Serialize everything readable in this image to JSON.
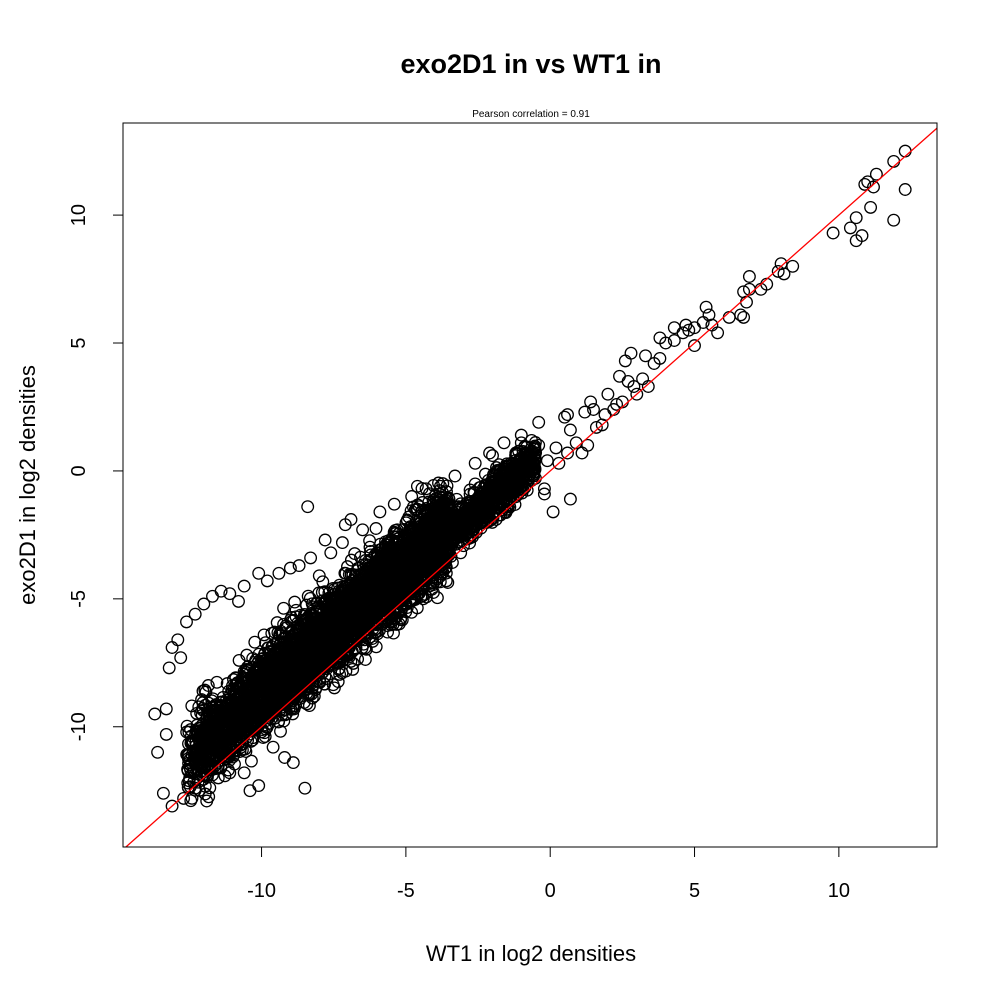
{
  "chart_data": {
    "type": "scatter",
    "title": "exo2D1 in vs WT1 in",
    "subtitle": "Pearson correlation =  0.91",
    "xlabel": "WT1 in log2 densities",
    "ylabel": "exo2D1 in log2 densities",
    "xlim": [
      -14.8,
      13.4
    ],
    "ylim": [
      -14.7,
      13.6
    ],
    "x_ticks": [
      -10,
      -5,
      0,
      5,
      10
    ],
    "y_ticks": [
      -10,
      -5,
      0,
      5,
      10
    ],
    "grid": false,
    "legend": "none",
    "point_style": "open-circle",
    "point_color": "#000000",
    "line_color": "#ff0000",
    "reference_line": {
      "slope": 1,
      "intercept": 0
    },
    "series": [
      {
        "points": [
          [
            12.3,
            12.5
          ],
          [
            12.3,
            11.0
          ],
          [
            11.9,
            12.1
          ],
          [
            11.9,
            9.8
          ],
          [
            11.3,
            11.6
          ],
          [
            11.2,
            11.1
          ],
          [
            11.1,
            10.3
          ],
          [
            11.0,
            11.3
          ],
          [
            10.9,
            11.2
          ],
          [
            10.8,
            9.2
          ],
          [
            10.6,
            9.9
          ],
          [
            10.6,
            9.0
          ],
          [
            10.4,
            9.5
          ],
          [
            9.8,
            9.3
          ],
          [
            8.4,
            8.0
          ],
          [
            8.1,
            7.7
          ],
          [
            8.0,
            8.1
          ],
          [
            7.9,
            7.8
          ],
          [
            7.5,
            7.3
          ],
          [
            7.3,
            7.1
          ],
          [
            6.9,
            7.6
          ],
          [
            6.9,
            7.1
          ],
          [
            6.8,
            6.6
          ],
          [
            6.7,
            7.0
          ],
          [
            6.7,
            6.0
          ],
          [
            6.6,
            6.1
          ],
          [
            6.2,
            6.0
          ],
          [
            5.8,
            5.4
          ],
          [
            5.6,
            5.7
          ],
          [
            5.5,
            6.1
          ],
          [
            5.4,
            6.4
          ],
          [
            5.3,
            5.8
          ],
          [
            5.0,
            5.6
          ],
          [
            5.0,
            4.9
          ],
          [
            4.8,
            5.5
          ],
          [
            4.7,
            5.7
          ],
          [
            4.6,
            5.4
          ],
          [
            4.3,
            5.1
          ],
          [
            4.3,
            5.6
          ],
          [
            4.0,
            5.0
          ],
          [
            3.8,
            4.4
          ],
          [
            3.6,
            4.2
          ],
          [
            3.8,
            5.2
          ],
          [
            3.4,
            3.3
          ],
          [
            3.3,
            4.5
          ],
          [
            3.2,
            3.6
          ],
          [
            3.0,
            3.0
          ],
          [
            2.9,
            3.3
          ],
          [
            2.8,
            4.6
          ],
          [
            2.7,
            3.5
          ],
          [
            2.6,
            4.3
          ],
          [
            2.5,
            2.7
          ],
          [
            2.4,
            3.7
          ],
          [
            2.2,
            2.4
          ],
          [
            2.0,
            3.0
          ],
          [
            1.9,
            2.2
          ],
          [
            1.6,
            1.7
          ],
          [
            1.8,
            1.8
          ],
          [
            1.4,
            2.7
          ],
          [
            1.3,
            1.0
          ],
          [
            1.2,
            2.3
          ],
          [
            1.1,
            0.7
          ],
          [
            0.9,
            1.1
          ],
          [
            0.7,
            1.6
          ],
          [
            0.6,
            0.7
          ],
          [
            0.5,
            2.1
          ],
          [
            0.3,
            0.3
          ],
          [
            0.2,
            0.9
          ],
          [
            -0.1,
            0.4
          ],
          [
            -0.2,
            -0.7
          ],
          [
            0.1,
            -1.6
          ],
          [
            0.7,
            -1.1
          ],
          [
            -0.2,
            -0.9
          ],
          [
            -0.4,
            1.0
          ],
          [
            -0.6,
            0.4
          ],
          [
            -0.8,
            0.5
          ],
          [
            -0.9,
            -0.2
          ],
          [
            -1.2,
            0.6
          ],
          [
            -1.0,
            1.1
          ],
          [
            -1.5,
            0.2
          ],
          [
            -1.6,
            -0.1
          ],
          [
            -1.8,
            -0.4
          ],
          [
            -2.0,
            0.6
          ],
          [
            -2.2,
            -0.6
          ],
          [
            -2.4,
            -1.0
          ],
          [
            -2.6,
            -1.6
          ],
          [
            -2.8,
            -1.2
          ],
          [
            -3.1,
            -3.2
          ],
          [
            -3.6,
            -4.3
          ],
          [
            -4.0,
            -2.2
          ],
          [
            -4.2,
            -1.9
          ],
          [
            -4.6,
            -0.6
          ],
          [
            -4.9,
            -1.8
          ],
          [
            -5.3,
            -2.3
          ],
          [
            -5.6,
            -2.9
          ],
          [
            -6.0,
            -3.2
          ],
          [
            -6.4,
            -3.5
          ],
          [
            -6.9,
            -1.9
          ],
          [
            -7.2,
            -2.8
          ],
          [
            -7.6,
            -3.2
          ],
          [
            -8.0,
            -4.1
          ],
          [
            -8.4,
            -1.4
          ],
          [
            -8.5,
            -12.4
          ],
          [
            -8.9,
            -11.4
          ],
          [
            -9.2,
            -11.2
          ],
          [
            -9.6,
            -10.8
          ],
          [
            -10.1,
            -12.3
          ],
          [
            -10.4,
            -12.5
          ],
          [
            -10.6,
            -11.8
          ],
          [
            -11.1,
            -11.8
          ],
          [
            -11.5,
            -12.0
          ],
          [
            -11.9,
            -12.9
          ],
          [
            -12.3,
            -12.4
          ],
          [
            -12.7,
            -12.8
          ],
          [
            -13.1,
            -13.1
          ],
          [
            -13.4,
            -12.6
          ],
          [
            -13.7,
            -9.5
          ],
          [
            -13.6,
            -11.0
          ],
          [
            -13.3,
            -9.3
          ],
          [
            -13.3,
            -10.3
          ],
          [
            -13.2,
            -7.7
          ],
          [
            -13.1,
            -6.9
          ],
          [
            -12.9,
            -6.6
          ],
          [
            -12.8,
            -7.3
          ],
          [
            -12.6,
            -5.9
          ],
          [
            -12.3,
            -5.6
          ],
          [
            -12.0,
            -5.2
          ],
          [
            -11.7,
            -4.9
          ],
          [
            -11.4,
            -4.7
          ],
          [
            -11.1,
            -4.8
          ],
          [
            -10.8,
            -5.1
          ],
          [
            -10.6,
            -4.5
          ],
          [
            -10.1,
            -4.0
          ],
          [
            -9.8,
            -4.3
          ],
          [
            -9.4,
            -4.0
          ],
          [
            -9.0,
            -3.8
          ],
          [
            -8.7,
            -3.7
          ],
          [
            -8.3,
            -3.4
          ],
          [
            -7.8,
            -2.7
          ],
          [
            -7.1,
            -2.1
          ],
          [
            -6.5,
            -2.3
          ],
          [
            -5.9,
            -1.6
          ],
          [
            -5.4,
            -1.3
          ],
          [
            -4.8,
            -1.0
          ],
          [
            -4.3,
            -0.7
          ],
          [
            -3.8,
            -0.6
          ],
          [
            -3.3,
            -0.2
          ],
          [
            -2.6,
            0.3
          ],
          [
            -2.1,
            0.7
          ],
          [
            -1.6,
            1.1
          ],
          [
            -1.0,
            1.4
          ],
          [
            -0.4,
            1.9
          ],
          [
            0.6,
            2.2
          ],
          [
            1.5,
            2.4
          ],
          [
            2.3,
            2.6
          ]
        ]
      }
    ],
    "cloud_density": [
      {
        "x_range": [
          -12.6,
          -3.5
        ],
        "y_center_offset": 1.3,
        "y_spread": 1.6
      },
      {
        "x_range": [
          -3.5,
          -0.5
        ],
        "y_center_offset": 1.0,
        "y_spread": 0.9
      }
    ]
  }
}
